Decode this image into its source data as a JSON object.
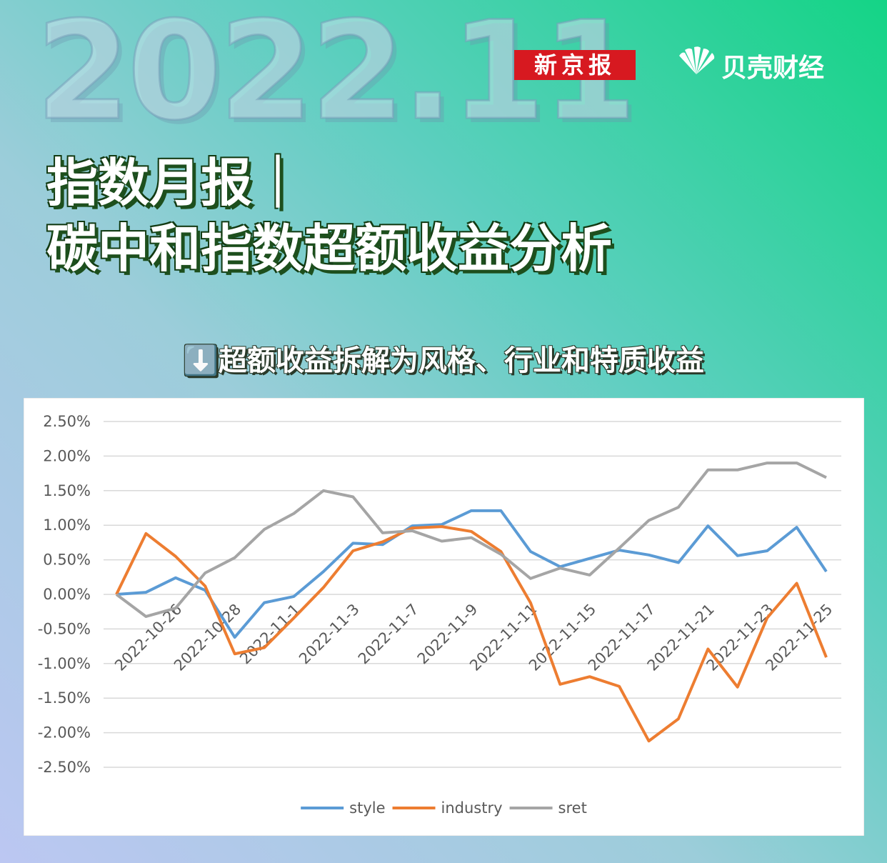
{
  "header": {
    "watermark": "2022.11",
    "brand": "新京报",
    "logo": "贝壳财经",
    "title_lines": [
      "指数月报｜",
      "碳中和指数超额收益分析"
    ],
    "subtitle": "⬇️超额收益拆解为风格、行业和特质收益"
  },
  "chart_data": {
    "type": "line",
    "categories": [
      null,
      null,
      "2022-10-26",
      null,
      "2022-10-28",
      null,
      "2022-11-1",
      null,
      "2022-11-3",
      null,
      "2022-11-7",
      null,
      "2022-11-9",
      null,
      "2022-11-11",
      null,
      "2022-11-15",
      null,
      "2022-11-17",
      null,
      "2022-11-21",
      null,
      "2022-11-23",
      null,
      "2022-11-25"
    ],
    "series": [
      {
        "name": "style",
        "color": "#5b9bd5",
        "values": [
          0,
          0.03,
          0.24,
          0.06,
          -0.62,
          -0.12,
          -0.03,
          0.33,
          0.74,
          0.72,
          0.99,
          1.01,
          1.21,
          1.21,
          0.62,
          0.4,
          0.52,
          0.64,
          0.57,
          0.46,
          0.99,
          0.56,
          0.63,
          0.97,
          0.33
        ]
      },
      {
        "name": "industry",
        "color": "#ed7d31",
        "values": [
          0,
          0.88,
          0.55,
          0.12,
          -0.86,
          -0.77,
          -0.34,
          0.1,
          0.63,
          0.76,
          0.96,
          0.98,
          0.91,
          0.62,
          -0.12,
          -1.3,
          -1.19,
          -1.33,
          -2.12,
          -1.8,
          -0.79,
          -1.34,
          -0.34,
          0.16,
          -0.91
        ]
      },
      {
        "name": "sret",
        "color": "#a5a5a5",
        "values": [
          0,
          -0.32,
          -0.2,
          0.31,
          0.53,
          0.94,
          1.17,
          1.5,
          1.41,
          0.89,
          0.92,
          0.77,
          0.82,
          0.58,
          0.23,
          0.38,
          0.28,
          0.67,
          1.07,
          1.26,
          1.8,
          1.8,
          1.9,
          1.9,
          1.69
        ]
      }
    ],
    "ylim": [
      -2.5,
      2.5
    ],
    "yticks": [
      {
        "value": -2.5,
        "label": "-2.50%"
      },
      {
        "value": -2,
        "label": "-2.00%"
      },
      {
        "value": -1.5,
        "label": "-1.50%"
      },
      {
        "value": -1,
        "label": "-1.00%"
      },
      {
        "value": -0.5,
        "label": "-0.50%"
      },
      {
        "value": 0,
        "label": "0.00%"
      },
      {
        "value": 0.5,
        "label": "0.50%"
      },
      {
        "value": 1,
        "label": "1.00%"
      },
      {
        "value": 1.5,
        "label": "1.50%"
      },
      {
        "value": 2,
        "label": "2.00%"
      },
      {
        "value": 2.5,
        "label": "2.50%"
      }
    ],
    "grid": true,
    "legend": "bottom"
  }
}
